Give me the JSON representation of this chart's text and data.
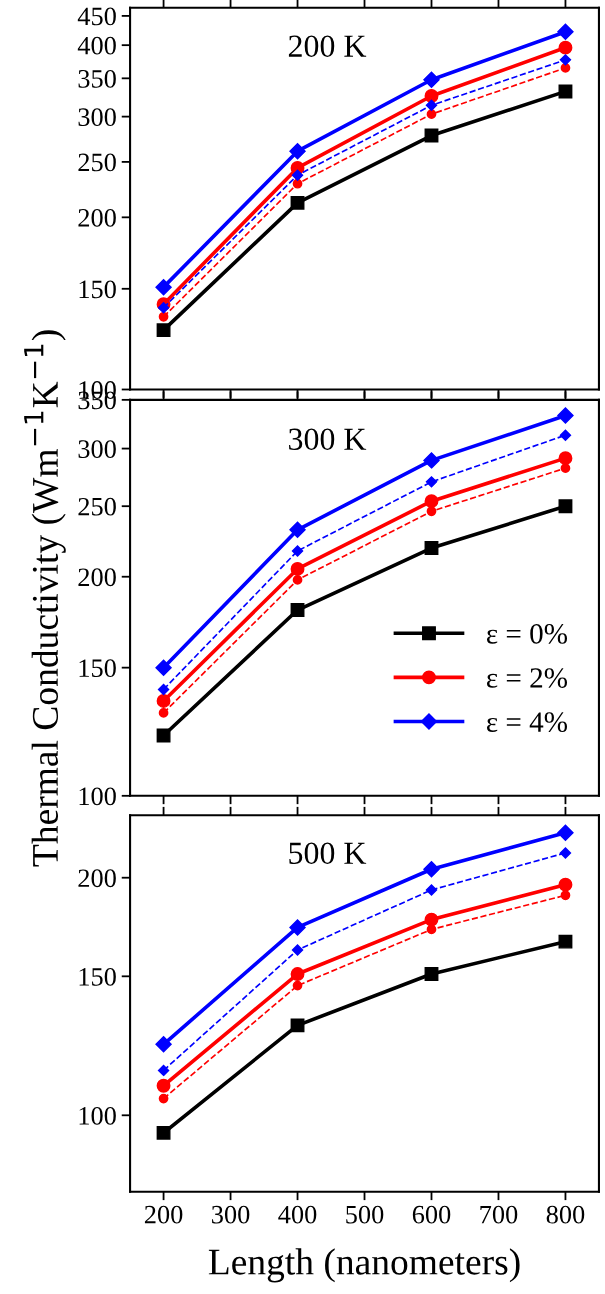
{
  "chart_data": [
    {
      "type": "line",
      "title": "200 K",
      "x": [
        200,
        400,
        600,
        800
      ],
      "xlim": [
        150,
        850
      ],
      "ylim": [
        100,
        465
      ],
      "yticks": [
        100,
        150,
        200,
        250,
        300,
        350,
        400,
        450
      ],
      "log": "y",
      "tick_labels": "y",
      "grid": false,
      "legend": false,
      "series": [
        {
          "color": "#000000",
          "marker": "square",
          "line_style": "solid",
          "values": [
            127,
            212,
            278,
            332
          ]
        },
        {
          "color": "#ff0000",
          "marker": "circle",
          "line_style": "solid",
          "values": [
            141,
            244,
            326,
            396
          ]
        },
        {
          "color": "#0000ff",
          "marker": "diamond",
          "line_style": "solid",
          "values": [
            151,
            261,
            348,
            422
          ]
        },
        {
          "color": "#ff0000",
          "marker": "circle",
          "line_style": "dashed",
          "values": [
            134,
            229,
            303,
            365
          ]
        },
        {
          "color": "#0000ff",
          "marker": "diamond",
          "line_style": "dashed",
          "values": [
            139,
            237,
            314,
            377
          ]
        }
      ]
    },
    {
      "type": "line",
      "title": "300 K",
      "ylabel": "Thermal Conductivity (Wm$^{−1}$K$^{−1}$)",
      "x": [
        200,
        400,
        600,
        800
      ],
      "xlim": [
        150,
        850
      ],
      "ylim": [
        100,
        350
      ],
      "yticks": [
        100,
        150,
        200,
        250,
        300,
        350
      ],
      "log": "y",
      "tick_labels": "y",
      "grid": false,
      "legend": "right",
      "series": [
        {
          "name": "ε = 0%",
          "color": "#000000",
          "marker": "square",
          "line_style": "solid",
          "values": [
            121,
            180,
            219,
            250
          ]
        },
        {
          "name": "ε = 2%",
          "color": "#ff0000",
          "marker": "circle",
          "line_style": "solid",
          "values": [
            135,
            205,
            254,
            291
          ]
        },
        {
          "name": "ε = 4%",
          "color": "#0000ff",
          "marker": "diamond",
          "line_style": "solid",
          "values": [
            150,
            232,
            289,
            333
          ]
        },
        {
          "color": "#ff0000",
          "marker": "circle",
          "line_style": "dashed",
          "values": [
            130,
            198,
            246,
            282
          ]
        },
        {
          "color": "#0000ff",
          "marker": "diamond",
          "line_style": "dashed",
          "values": [
            140,
            217,
            270,
            313
          ]
        }
      ]
    },
    {
      "type": "line",
      "title": "500 K",
      "xlabel": "Length (nanometers)",
      "x": [
        200,
        400,
        600,
        800
      ],
      "xlim": [
        150,
        850
      ],
      "xticks": [
        200,
        300,
        400,
        500,
        600,
        700,
        800
      ],
      "ylim": [
        80,
        240
      ],
      "yticks": [
        100,
        150,
        200
      ],
      "log": "y",
      "grid": false,
      "legend": false,
      "series": [
        {
          "color": "#000000",
          "marker": "square",
          "line_style": "solid",
          "values": [
            95,
            130,
            151,
            166
          ]
        },
        {
          "color": "#ff0000",
          "marker": "circle",
          "line_style": "solid",
          "values": [
            109,
            151,
            177,
            196
          ]
        },
        {
          "color": "#0000ff",
          "marker": "diamond",
          "line_style": "solid",
          "values": [
            123,
            173,
            205,
            228
          ]
        },
        {
          "color": "#ff0000",
          "marker": "circle",
          "line_style": "dashed",
          "values": [
            105,
            146,
            172,
            190
          ]
        },
        {
          "color": "#0000ff",
          "marker": "diamond",
          "line_style": "dashed",
          "values": [
            114,
            162,
            193,
            215
          ]
        }
      ]
    }
  ]
}
